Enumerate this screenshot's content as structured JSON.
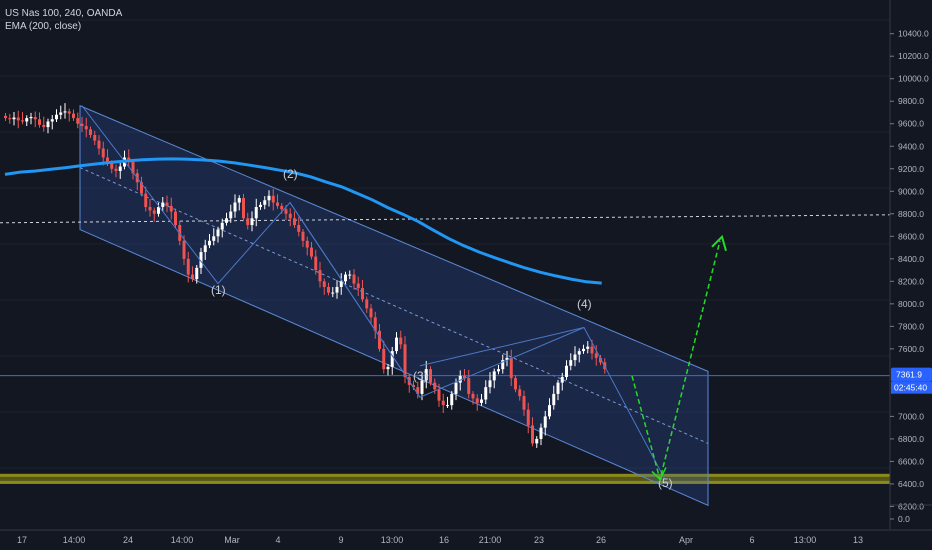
{
  "header": {
    "symbol": "US Nas 100, 240, OANDA",
    "indicator": "EMA (200, close)"
  },
  "price_axis": {
    "labels": [
      "10400.0",
      "10200.0",
      "10000.0",
      "9800.0",
      "9600.0",
      "9400.0",
      "9200.0",
      "9000.0",
      "8800.0",
      "8600.0",
      "8400.0",
      "8200.0",
      "8000.0",
      "7800.0",
      "7600.0",
      "7000.0",
      "6800.0",
      "6600.0",
      "6400.0",
      "6200.0",
      "0.0"
    ]
  },
  "time_axis": {
    "labels": [
      "17",
      "14:00",
      "24",
      "14:00",
      "Mar",
      "4",
      "9",
      "13:00",
      "16",
      "21:00",
      "23",
      "26",
      "Apr",
      "6",
      "13:00",
      "13"
    ]
  },
  "price_tag": {
    "value": "7361.9",
    "countdown": "02:45:40"
  },
  "wave_labels": [
    "(1)",
    "(2)",
    "(3)",
    "(4)",
    "(5)"
  ],
  "colors": {
    "background": "#131722",
    "bull": "#ffffff",
    "bear": "#ef5350",
    "ema": "#2196f3",
    "channel": "#5a8ad8",
    "projection": "#22dd22",
    "support_zone": "#8a8a1a",
    "price_tag": "#2962ff"
  },
  "chart_data": {
    "type": "candlestick",
    "title": "US Nas 100, 240, OANDA",
    "indicator": "EMA (200, close)",
    "ylim": [
      6150,
      10480
    ],
    "close": [
      9650,
      9640,
      9655,
      9630,
      9620,
      9650,
      9660,
      9640,
      9590,
      9570,
      9620,
      9640,
      9680,
      9700,
      9710,
      9690,
      9650,
      9600,
      9580,
      9550,
      9500,
      9450,
      9380,
      9300,
      9250,
      9200,
      9180,
      9220,
      9300,
      9260,
      9160,
      9080,
      8980,
      8860,
      8830,
      8800,
      8860,
      8900,
      8870,
      8820,
      8700,
      8560,
      8400,
      8260,
      8220,
      8320,
      8460,
      8520,
      8560,
      8600,
      8660,
      8720,
      8760,
      8820,
      8900,
      8940,
      8760,
      8700,
      8760,
      8860,
      8880,
      8920,
      8960,
      8900,
      8870,
      8840,
      8800,
      8760,
      8700,
      8640,
      8560,
      8500,
      8420,
      8300,
      8200,
      8150,
      8100,
      8100,
      8150,
      8200,
      8260,
      8260,
      8180,
      8140,
      8040,
      7960,
      7880,
      7760,
      7600,
      7420,
      7440,
      7580,
      7700,
      7640,
      7350,
      7280,
      7260,
      7200,
      7320,
      7420,
      7300,
      7240,
      7140,
      7100,
      7100,
      7200,
      7300,
      7360,
      7340,
      7200,
      7160,
      7120,
      7150,
      7260,
      7320,
      7400,
      7420,
      7500,
      7520,
      7340,
      7240,
      7180,
      7060,
      6920,
      6760,
      6800,
      6900,
      7000,
      7100,
      7200,
      7300,
      7350,
      7450,
      7500,
      7550,
      7580,
      7600,
      7620,
      7560,
      7520,
      7480,
      7420
    ],
    "ema": [
      9150,
      9170,
      9180,
      9195,
      9210,
      9228,
      9243,
      9258,
      9270,
      9280,
      9286,
      9288,
      9285,
      9278,
      9268,
      9252,
      9232,
      9210,
      9186,
      9162,
      9128,
      9082,
      9040,
      8982,
      8924,
      8856,
      8796,
      8732,
      8654,
      8580,
      8516,
      8460,
      8410,
      8364,
      8318,
      8280,
      8248,
      8220,
      8196,
      8184
    ],
    "channel": {
      "upper": [
        [
          9760,
          9260
        ],
        [
          7400,
          9400
        ]
      ],
      "lower": [
        [
          8660,
          9190
        ],
        [
          6210,
          9400
        ]
      ],
      "midline": [
        [
          9210,
          9190
        ],
        [
          6760,
          9400
        ]
      ]
    },
    "horizontal_levels": [
      8720,
      7361.9
    ],
    "support_zone": [
      6400,
      6490
    ],
    "waves": [
      {
        "label": "(1)",
        "price": 8180
      },
      {
        "label": "(2)",
        "price": 8900
      },
      {
        "label": "(3)",
        "price": 7170
      },
      {
        "label": "(4)",
        "price": 7790
      },
      {
        "label": "(5)",
        "price": 6440
      }
    ],
    "projection": [
      7360,
      6440,
      8560
    ],
    "last_price": 7361.9
  }
}
